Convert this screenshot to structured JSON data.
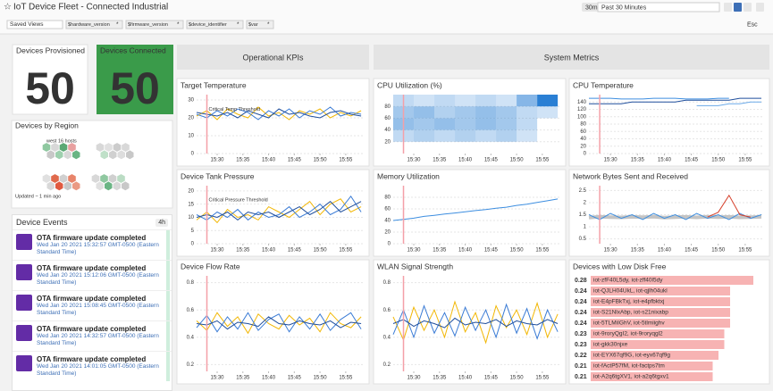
{
  "header": {
    "title": "IoT Device Fleet - Connected Industrial",
    "time_shortcut": "30m",
    "time_range": "Past 30 Minutes",
    "saved_views": "Saved Views",
    "template_variables": [
      {
        "name": "$hardware_version",
        "value": "*"
      },
      {
        "name": "$firmware_version",
        "value": "*"
      },
      {
        "name": "$device_identifier",
        "value": "*"
      },
      {
        "name": "$var",
        "value": "*"
      }
    ],
    "esc": "Esc"
  },
  "devices_provisioned": {
    "title": "Devices Provisioned",
    "value": 50
  },
  "devices_connected": {
    "title": "Devices Connected",
    "value": 50,
    "color": "#3a9b4a"
  },
  "devices_by_region": {
    "title": "Devices by Region",
    "group": "west",
    "hosts": "16 hosts",
    "updated": "Updated ~ 1 min ago"
  },
  "device_events": {
    "title": "Device Events",
    "span": "4h",
    "events": [
      {
        "title": "OTA firmware update completed",
        "time": "Wed Jan 20 2021 15:32:57 GMT-0500 (Eastern Standard Time)"
      },
      {
        "title": "OTA firmware update completed",
        "time": "Wed Jan 20 2021 15:12:06 GMT-0500 (Eastern Standard Time)"
      },
      {
        "title": "OTA firmware update completed",
        "time": "Wed Jan 20 2021 15:08:45 GMT-0500 (Eastern Standard Time)"
      },
      {
        "title": "OTA firmware update completed",
        "time": "Wed Jan 20 2021 14:32:57 GMT-0500 (Eastern Standard Time)"
      },
      {
        "title": "OTA firmware update completed",
        "time": "Wed Jan 20 2021 14:01:05 GMT-0500 (Eastern Standard Time)"
      }
    ]
  },
  "groups": [
    "Operational KPIs",
    "System Metrics"
  ],
  "time_axis": {
    "x": [
      26,
      28,
      30,
      32,
      34,
      36,
      38,
      40,
      42,
      44,
      46,
      48,
      50,
      52,
      54,
      56,
      58
    ],
    "xlim": [
      26,
      58.5
    ],
    "xticks": [
      {
        "value": 30,
        "label": "15:30"
      },
      {
        "value": 35,
        "label": "15:35"
      },
      {
        "value": 40,
        "label": "15:40"
      },
      {
        "value": 45,
        "label": "15:45"
      },
      {
        "value": 50,
        "label": "15:50"
      },
      {
        "value": 55,
        "label": "15:55"
      }
    ],
    "marker": 28
  },
  "chart_data": [
    {
      "type": "line",
      "title": "Target Temperature",
      "marker_label": "Critical Temp Threshold",
      "ylim": [
        0,
        33
      ],
      "yticks": [
        0,
        10,
        20,
        30
      ],
      "series": [
        {
          "color": "#f2b705",
          "values": [
            21,
            24,
            19,
            25,
            22,
            20,
            26,
            21,
            23,
            19,
            24,
            22,
            25,
            20,
            23,
            21,
            24
          ]
        },
        {
          "color": "#3a7bd5",
          "values": [
            22,
            20,
            24,
            21,
            25,
            23,
            19,
            24,
            21,
            25,
            20,
            24,
            22,
            26,
            21,
            23,
            22
          ]
        },
        {
          "color": "#1f4e9c",
          "values": [
            23,
            22,
            21,
            23,
            20,
            24,
            22,
            20,
            25,
            22,
            23,
            21,
            20,
            23,
            24,
            22,
            21
          ]
        }
      ]
    },
    {
      "type": "heatmap",
      "title": "CPU Utilization (%)",
      "ylim": [
        0,
        100
      ],
      "yticks": [
        20,
        40,
        60,
        80
      ],
      "color": "#2a7fd4",
      "xbins": [
        26,
        30,
        34,
        38,
        42,
        46,
        50,
        54,
        58
      ],
      "ybins": [
        0,
        20,
        40,
        60,
        80,
        100
      ],
      "counts": [
        [
          0,
          2,
          5,
          4,
          2
        ],
        [
          0,
          3,
          4,
          5,
          1
        ],
        [
          0,
          2,
          5,
          3,
          2
        ],
        [
          0,
          3,
          4,
          4,
          1
        ],
        [
          0,
          2,
          5,
          5,
          2
        ],
        [
          0,
          3,
          4,
          4,
          1
        ],
        [
          0,
          1,
          2,
          2,
          6
        ],
        [
          0,
          0,
          0,
          1,
          12
        ]
      ]
    },
    {
      "type": "line",
      "title": "CPU Temperature",
      "ylim": [
        0,
        160
      ],
      "yticks": [
        0,
        20,
        40,
        60,
        80,
        100,
        120,
        140
      ],
      "series": [
        {
          "color": "#1f4e9c",
          "values": [
            135,
            135,
            135,
            135,
            140,
            140,
            140,
            140,
            140,
            145,
            145,
            145,
            145,
            145,
            150,
            150,
            150
          ]
        },
        {
          "color": "#3d8ee0",
          "values": [
            150,
            150,
            150,
            148,
            148,
            148,
            150,
            150,
            150,
            148,
            148,
            148,
            150,
            150,
            null,
            null,
            null
          ]
        },
        {
          "color": "#6aa9e8",
          "values": [
            null,
            null,
            null,
            null,
            null,
            null,
            null,
            null,
            null,
            null,
            130,
            130,
            130,
            135,
            135,
            140,
            140
          ]
        }
      ]
    },
    {
      "type": "line",
      "title": "Device Tank Pressure",
      "marker_label": "Critical Pressure Threshold",
      "ylim": [
        0,
        22
      ],
      "yticks": [
        0,
        5,
        10,
        15,
        20
      ],
      "series": [
        {
          "color": "#f2b705",
          "values": [
            9,
            12,
            8,
            13,
            10,
            11,
            9,
            14,
            12,
            10,
            13,
            16,
            11,
            15,
            17,
            12,
            14
          ]
        },
        {
          "color": "#3a7bd5",
          "values": [
            11,
            9,
            12,
            10,
            13,
            9,
            12,
            10,
            11,
            14,
            10,
            12,
            15,
            11,
            13,
            18,
            12
          ]
        },
        {
          "color": "#1f4e9c",
          "values": [
            10,
            11,
            10,
            12,
            9,
            12,
            11,
            12,
            10,
            12,
            14,
            11,
            13,
            16,
            12,
            14,
            16
          ]
        }
      ]
    },
    {
      "type": "line",
      "title": "Memory Utilization",
      "ylim": [
        0,
        100
      ],
      "yticks": [
        0,
        20,
        40,
        60,
        80
      ],
      "series": [
        {
          "color": "#3d8ee0",
          "values": [
            40,
            42,
            44,
            47,
            49,
            51,
            53,
            55,
            57,
            59,
            61,
            63,
            66,
            68,
            71,
            74,
            77
          ]
        }
      ]
    },
    {
      "type": "line",
      "title": "Network Bytes Sent and Received",
      "ylim": [
        0.3,
        2.7
      ],
      "yticks": [
        0.5,
        1,
        1.5,
        2,
        2.5
      ],
      "series": [
        {
          "color": "#c4c4c4",
          "values": [
            1.38,
            1.42,
            1.4,
            1.39,
            1.41,
            1.4,
            1.42,
            1.38,
            1.4,
            1.41,
            1.39,
            1.42,
            1.4,
            1.41,
            1.39,
            1.4,
            1.41
          ]
        },
        {
          "color": "#3d8ee0",
          "values": [
            1.5,
            1.3,
            1.55,
            1.35,
            1.5,
            1.3,
            1.55,
            1.35,
            1.5,
            1.3,
            1.55,
            1.35,
            1.5,
            1.3,
            1.55,
            1.35,
            1.5
          ]
        },
        {
          "color": "#d6402b",
          "values": [
            null,
            null,
            null,
            null,
            null,
            null,
            null,
            null,
            null,
            null,
            null,
            1.4,
            1.6,
            2.3,
            1.5,
            1.4,
            null
          ]
        }
      ]
    },
    {
      "type": "line",
      "title": "Device Flow Rate",
      "ylim": [
        0.15,
        0.85
      ],
      "yticks": [
        0.2,
        0.4,
        0.6,
        0.8
      ],
      "series": [
        {
          "color": "#f2b705",
          "values": [
            0.52,
            0.45,
            0.58,
            0.48,
            0.55,
            0.43,
            0.57,
            0.5,
            0.46,
            0.56,
            0.49,
            0.54,
            0.44,
            0.58,
            0.5,
            0.47,
            0.55
          ]
        },
        {
          "color": "#3a7bd5",
          "values": [
            0.47,
            0.56,
            0.44,
            0.55,
            0.46,
            0.58,
            0.45,
            0.53,
            0.57,
            0.44,
            0.55,
            0.46,
            0.57,
            0.45,
            0.53,
            0.58,
            0.46
          ]
        },
        {
          "color": "#1f4e9c",
          "values": [
            0.5,
            0.49,
            0.52,
            0.46,
            0.51,
            0.5,
            0.48,
            0.55,
            0.5,
            0.49,
            0.52,
            0.5,
            0.49,
            0.52,
            0.47,
            0.51,
            0.5
          ]
        }
      ]
    },
    {
      "type": "line",
      "title": "WLAN Signal Strength",
      "ylim": [
        0.15,
        0.85
      ],
      "yticks": [
        0.2,
        0.4,
        0.6,
        0.8
      ],
      "series": [
        {
          "color": "#f2b705",
          "values": [
            0.55,
            0.38,
            0.62,
            0.45,
            0.6,
            0.4,
            0.66,
            0.44,
            0.58,
            0.36,
            0.63,
            0.47,
            0.6,
            0.42,
            0.65,
            0.4,
            0.57
          ]
        },
        {
          "color": "#3a7bd5",
          "values": [
            0.42,
            0.6,
            0.4,
            0.63,
            0.43,
            0.58,
            0.41,
            0.62,
            0.45,
            0.6,
            0.4,
            0.64,
            0.43,
            0.61,
            0.39,
            0.6,
            0.44
          ]
        },
        {
          "color": "#1f4e9c",
          "values": [
            0.5,
            0.53,
            0.48,
            0.52,
            0.5,
            0.47,
            0.54,
            0.49,
            0.51,
            0.5,
            0.53,
            0.48,
            0.52,
            0.5,
            0.49,
            0.53,
            0.5
          ]
        }
      ]
    },
    {
      "type": "toplist",
      "title": "Devices with Low Disk Free",
      "color": "#f7b3b3",
      "xlim": [
        0,
        0.28
      ],
      "categories": [
        "iot-zfF40L5dy, iot-zff40l5dy",
        "iot-QJLH04UkL, iot-qjlh04ukl",
        "iot-E4pFBkTxj, iot-e4pfbktxj",
        "iot-S21NlxAbp, iot-s21nixabp",
        "iot-5TLMiIGhV, iot-5tlmiighv",
        "iot-9roryQgI2, iot-9roryqgl2",
        "iot-gkk30njxe",
        "iot-EYX67qf9G, iot-eyx67qf9g",
        "iot-fActP57fM, iot-factps7tm",
        "iot-A2q6tgXV1, iot-a2q6tgxv1"
      ],
      "values": [
        0.28,
        0.24,
        0.24,
        0.24,
        0.24,
        0.23,
        0.23,
        0.22,
        0.21,
        0.21
      ]
    }
  ]
}
